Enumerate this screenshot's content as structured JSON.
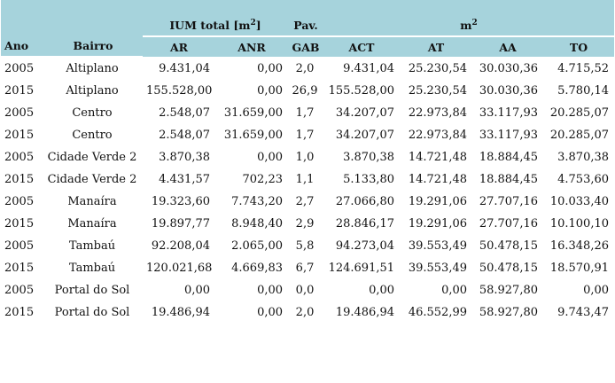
{
  "table": {
    "header": {
      "ano": "Ano",
      "bairro": "Bairro",
      "ium": [
        "IUM total [m",
        "2",
        "]"
      ],
      "pav": "Pav.",
      "m2": [
        "m",
        "2"
      ],
      "sub": [
        "AR",
        "ANR",
        "GAB",
        "ACT",
        "AT",
        "AA",
        "TO"
      ]
    },
    "rows": [
      [
        "2005",
        "Altiplano",
        "9.431,04",
        "0,00",
        "2,0",
        "9.431,04",
        "25.230,54",
        "30.030,36",
        "4.715,52"
      ],
      [
        "2015",
        "Altiplano",
        "155.528,00",
        "0,00",
        "26,9",
        "155.528,00",
        "25.230,54",
        "30.030,36",
        "5.780,14"
      ],
      [
        "2005",
        "Centro",
        "2.548,07",
        "31.659,00",
        "1,7",
        "34.207,07",
        "22.973,84",
        "33.117,93",
        "20.285,07"
      ],
      [
        "2015",
        "Centro",
        "2.548,07",
        "31.659,00",
        "1,7",
        "34.207,07",
        "22.973,84",
        "33.117,93",
        "20.285,07"
      ],
      [
        "2005",
        "Cidade Verde 2",
        "3.870,38",
        "0,00",
        "1,0",
        "3.870,38",
        "14.721,48",
        "18.884,45",
        "3.870,38"
      ],
      [
        "2015",
        "Cidade Verde 2",
        "4.431,57",
        "702,23",
        "1,1",
        "5.133,80",
        "14.721,48",
        "18.884,45",
        "4.753,60"
      ],
      [
        "2005",
        "Manaíra",
        "19.323,60",
        "7.743,20",
        "2,7",
        "27.066,80",
        "19.291,06",
        "27.707,16",
        "10.033,40"
      ],
      [
        "2015",
        "Manaíra",
        "19.897,77",
        "8.948,40",
        "2,9",
        "28.846,17",
        "19.291,06",
        "27.707,16",
        "10.100,10"
      ],
      [
        "2005",
        "Tambaú",
        "92.208,04",
        "2.065,00",
        "5,8",
        "94.273,04",
        "39.553,49",
        "50.478,15",
        "16.348,26"
      ],
      [
        "2015",
        "Tambaú",
        "120.021,68",
        "4.669,83",
        "6,7",
        "124.691,51",
        "39.553,49",
        "50.478,15",
        "18.570,91"
      ],
      [
        "2005",
        "Portal do Sol",
        "0,00",
        "0,00",
        "0,0",
        "0,00",
        "0,00",
        "58.927,80",
        "0,00"
      ],
      [
        "2015",
        "Portal do Sol",
        "19.486,94",
        "0,00",
        "2,0",
        "19.486,94",
        "46.552,99",
        "58.927,80",
        "9.743,47"
      ]
    ]
  }
}
